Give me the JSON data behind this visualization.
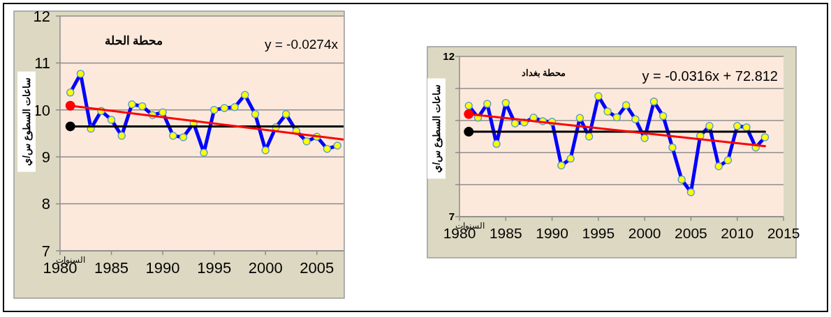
{
  "chart_data": [
    {
      "type": "line",
      "title": "محطة الحلة",
      "ylabel": "ساعات السطوع س/ي",
      "xlabel": "السنوات",
      "annotations": [
        "y = -0.0274x"
      ],
      "xlim": [
        1980,
        2007.6
      ],
      "xticks": [
        1980,
        1985,
        1990,
        1995,
        2000,
        2005
      ],
      "ylim": [
        7,
        12
      ],
      "yticks": [
        7,
        8,
        9,
        10,
        11,
        12
      ],
      "grid": "y",
      "series": [
        {
          "color": "#0000ff",
          "marker": "circle",
          "x": [
            1981,
            1982,
            1983,
            1984,
            1985,
            1986,
            1987,
            1988,
            1989,
            1990,
            1991,
            1992,
            1993,
            1994,
            1995,
            1996,
            1997,
            1998,
            1999,
            2000,
            2001,
            2002,
            2003,
            2004,
            2005,
            2006,
            2007
          ],
          "values": [
            10.37,
            10.77,
            9.6,
            9.98,
            9.79,
            9.45,
            10.12,
            10.08,
            9.89,
            9.95,
            9.45,
            9.42,
            9.72,
            9.09,
            10.0,
            10.04,
            10.06,
            10.32,
            9.91,
            9.14,
            9.63,
            9.91,
            9.55,
            9.33,
            9.43,
            9.17,
            9.24
          ]
        },
        {
          "type": "line",
          "color": "#000000",
          "x": [
            1981,
            2007.6
          ],
          "values": [
            9.65,
            9.65
          ]
        },
        {
          "type": "line",
          "color": "#ff0000",
          "x": [
            1981,
            2007.6
          ],
          "values": [
            10.09,
            9.37
          ]
        },
        {
          "type": "scatter",
          "color": "#ff0000",
          "x": [
            1981
          ],
          "values": [
            10.09
          ]
        },
        {
          "type": "scatter",
          "color": "#000000",
          "x": [
            1981
          ],
          "values": [
            9.65
          ]
        }
      ]
    },
    {
      "type": "line",
      "title": "محطة بغداد",
      "ylabel": "ساعات السطوع س/ي",
      "xlabel": "السنوات",
      "annotations": [
        "y = -0.0316x + 72.812"
      ],
      "xlim": [
        1980,
        2015
      ],
      "xticks": [
        1980,
        1985,
        1990,
        1995,
        2000,
        2005,
        2010,
        2015
      ],
      "ylim": [
        7,
        12
      ],
      "yticks": [
        7,
        {
          "value": 8,
          "label": null
        },
        {
          "value": 9,
          "label": null
        },
        {
          "value": 10,
          "label": null
        },
        {
          "value": 11,
          "label": null
        },
        12
      ],
      "grid": "y",
      "series": [
        {
          "color": "#0000ff",
          "marker": "circle",
          "x": [
            1981,
            1982,
            1983,
            1984,
            1985,
            1986,
            1987,
            1988,
            1989,
            1990,
            1991,
            1992,
            1993,
            1994,
            1995,
            1996,
            1997,
            1998,
            1999,
            2000,
            2001,
            2002,
            2003,
            2004,
            2005,
            2006,
            2007,
            2008,
            2009,
            2010,
            2011,
            2012,
            2013
          ],
          "values": [
            10.46,
            10.09,
            10.52,
            9.27,
            10.55,
            9.91,
            9.94,
            10.09,
            9.98,
            9.96,
            8.6,
            8.81,
            10.08,
            9.5,
            10.76,
            10.28,
            10.1,
            10.48,
            10.04,
            9.45,
            10.59,
            10.14,
            9.16,
            8.16,
            7.76,
            9.52,
            9.83,
            8.57,
            8.76,
            9.83,
            9.79,
            9.16,
            9.48
          ]
        },
        {
          "type": "line",
          "color": "#000000",
          "x": [
            1981,
            2013
          ],
          "values": [
            9.65,
            9.65
          ]
        },
        {
          "type": "line",
          "color": "#ff0000",
          "x": [
            1981,
            2013
          ],
          "values": [
            10.2,
            9.2
          ]
        },
        {
          "type": "scatter",
          "color": "#ff0000",
          "x": [
            1981
          ],
          "values": [
            10.2
          ]
        },
        {
          "type": "scatter",
          "color": "#000000",
          "x": [
            1981
          ],
          "values": [
            9.65
          ]
        }
      ]
    }
  ]
}
